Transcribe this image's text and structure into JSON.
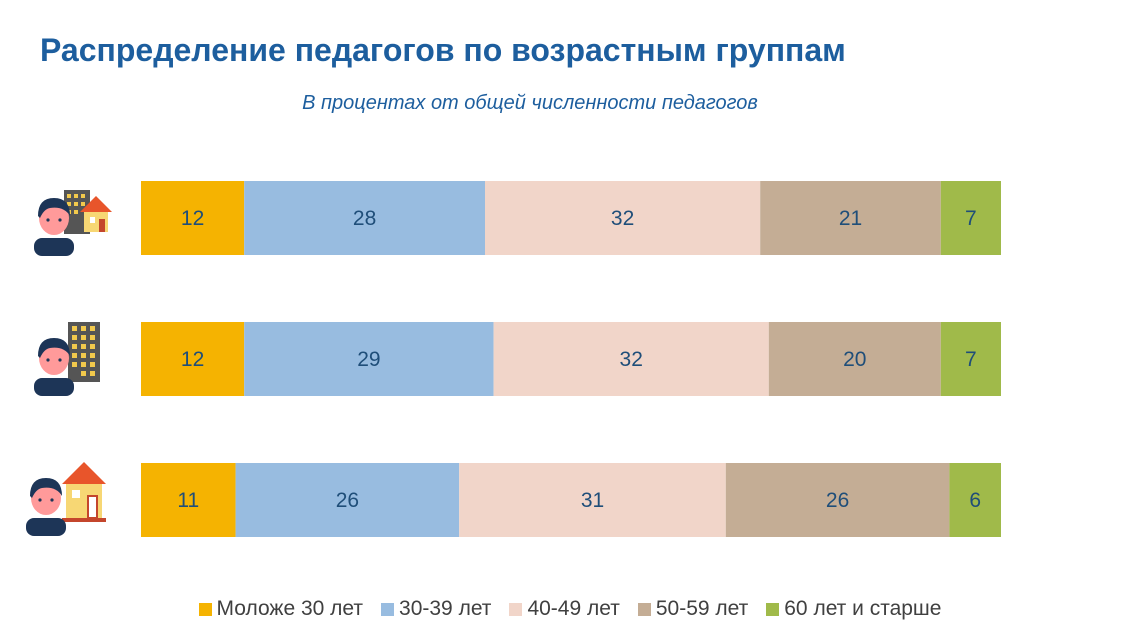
{
  "header": {
    "title": "Распределение педагогов по возрастным группам",
    "subtitle": "В процентах от общей численности педагогов"
  },
  "chart_data": {
    "type": "bar",
    "orientation": "horizontal",
    "stacked": true,
    "title": "Распределение педагогов по возрастным группам",
    "subtitle": "В процентах от общей численности педагогов",
    "categories": [
      "Всего",
      "Город",
      "Село"
    ],
    "category_icons": [
      "teacher-city-and-village-icon",
      "teacher-city-icon",
      "teacher-village-icon"
    ],
    "series": [
      {
        "name": "Моложе 30 лет",
        "color": "#f5b301",
        "values": [
          12,
          12,
          11
        ]
      },
      {
        "name": "30-39 лет",
        "color": "#98bce0",
        "values": [
          28,
          29,
          26
        ]
      },
      {
        "name": "40-49 лет",
        "color": "#f1d5c9",
        "values": [
          32,
          32,
          31
        ]
      },
      {
        "name": "50-59 лет",
        "color": "#c4ad95",
        "values": [
          21,
          20,
          26
        ]
      },
      {
        "name": "60 лет и старше",
        "color": "#a0ba4a",
        "values": [
          7,
          7,
          6
        ]
      }
    ],
    "xlim": [
      0,
      100
    ],
    "legend_position": "bottom",
    "grid": false
  }
}
